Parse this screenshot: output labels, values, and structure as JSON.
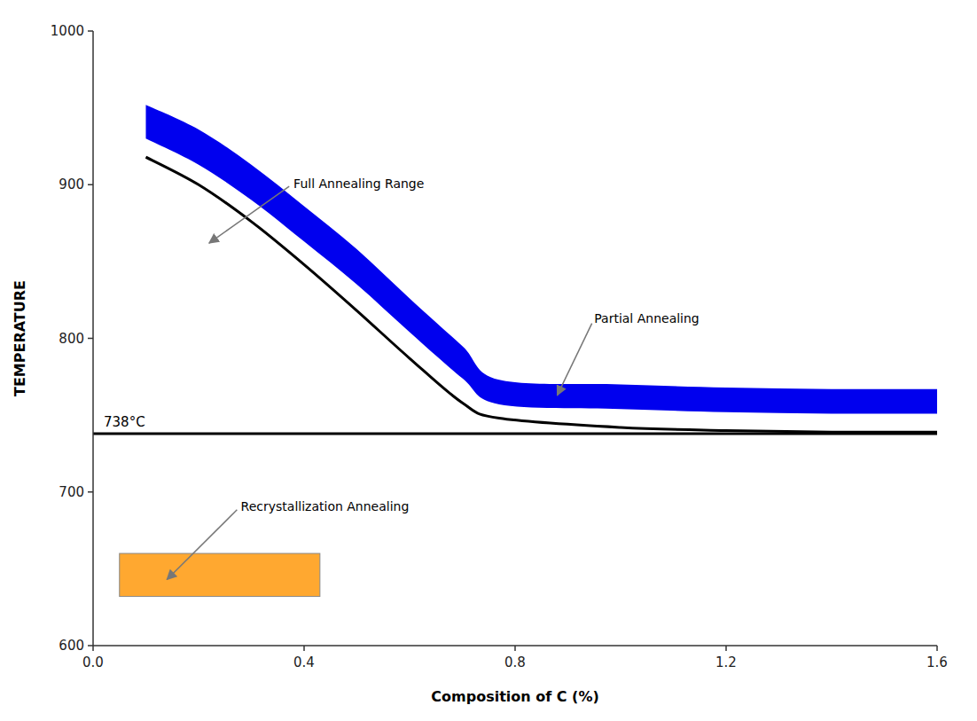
{
  "chart_data": {
    "type": "line",
    "xlabel": "Composition of C (%)",
    "ylabel": "TEMPERATURE",
    "xlim": [
      0.0,
      1.6
    ],
    "ylim": [
      600,
      1000
    ],
    "xticks": [
      {
        "value": 0.0,
        "label": "0.0"
      },
      0.4,
      0.8,
      1.2,
      1.6
    ],
    "yticks": [
      600,
      700,
      800,
      900,
      1000
    ],
    "grid": false,
    "series": [
      {
        "type": "band",
        "color": "#0000EE",
        "x": [
          0.1,
          0.2,
          0.3,
          0.4,
          0.5,
          0.6,
          0.7,
          0.77,
          1.0,
          1.2,
          1.4,
          1.6
        ],
        "values": [
          952,
          936,
          913,
          886,
          858,
          826,
          795,
          773,
          770,
          768,
          767,
          767
        ],
        "lower": [
          930,
          913,
          890,
          863,
          835,
          804,
          774,
          757,
          754,
          752,
          751,
          751
        ]
      },
      {
        "type": "line",
        "color": "#000000",
        "x": [
          0.1,
          0.2,
          0.3,
          0.4,
          0.5,
          0.6,
          0.7,
          0.77,
          1.0,
          1.2,
          1.4,
          1.6
        ],
        "values": [
          918,
          900,
          876,
          848,
          818,
          787,
          758,
          748,
          742,
          740,
          739,
          739
        ]
      }
    ],
    "reference_lines": [
      {
        "y": 738,
        "label": "738°C",
        "color": "#000000"
      }
    ],
    "regions": [
      {
        "x0": 0.05,
        "y0": 632,
        "width": 0.38,
        "height": 28,
        "color": "#FFA830"
      }
    ],
    "annotations": [
      {
        "text": "Full Annealing Range",
        "x": 0.22,
        "y": 862,
        "text_x": 0.38,
        "text_y": 898
      },
      {
        "text": "Partial Annealing",
        "x": 0.88,
        "y": 763,
        "text_x": 0.95,
        "text_y": 810
      },
      {
        "text": "Recrystallization Annealing",
        "x": 0.14,
        "y": 643,
        "text_x": 0.28,
        "text_y": 688
      }
    ]
  }
}
